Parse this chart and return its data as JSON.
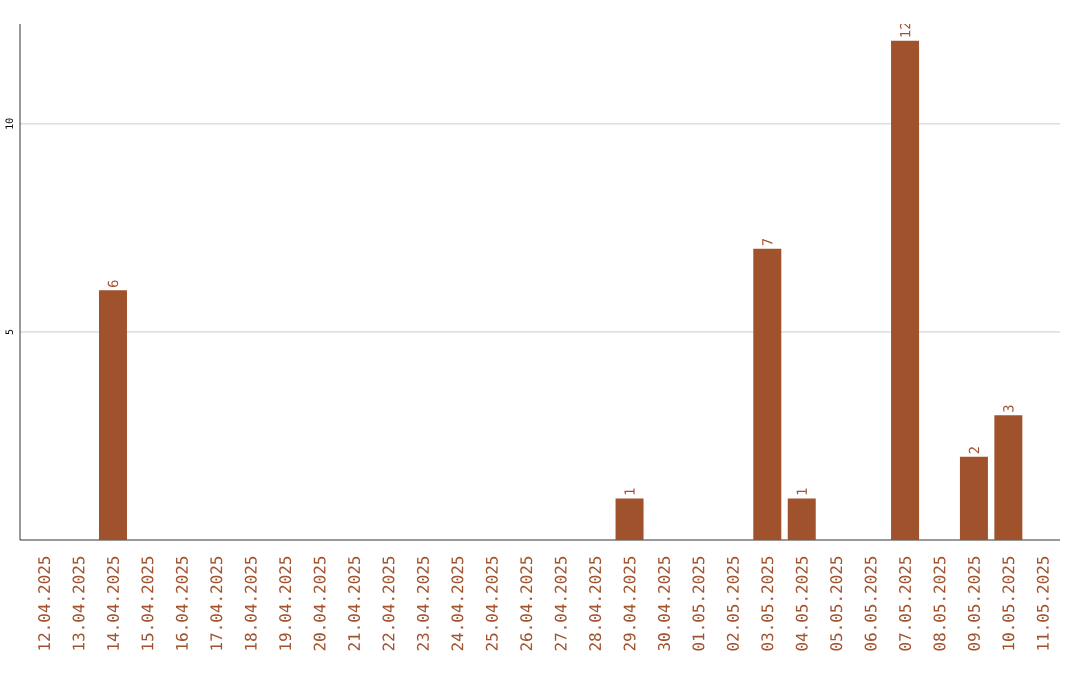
{
  "chart_data": {
    "type": "bar",
    "categories": [
      "12.04.2025",
      "13.04.2025",
      "14.04.2025",
      "15.04.2025",
      "16.04.2025",
      "17.04.2025",
      "18.04.2025",
      "19.04.2025",
      "20.04.2025",
      "21.04.2025",
      "22.04.2025",
      "23.04.2025",
      "24.04.2025",
      "25.04.2025",
      "26.04.2025",
      "27.04.2025",
      "28.04.2025",
      "29.04.2025",
      "30.04.2025",
      "01.05.2025",
      "02.05.2025",
      "03.05.2025",
      "04.05.2025",
      "05.05.2025",
      "06.05.2025",
      "07.05.2025",
      "08.05.2025",
      "09.05.2025",
      "10.05.2025",
      "11.05.2025"
    ],
    "values": [
      0,
      0,
      6,
      0,
      0,
      0,
      0,
      0,
      0,
      0,
      0,
      0,
      0,
      0,
      0,
      0,
      0,
      1,
      0,
      0,
      0,
      7,
      1,
      0,
      0,
      12,
      0,
      2,
      3,
      0
    ],
    "value_labels": [
      null,
      null,
      "6",
      null,
      null,
      null,
      null,
      null,
      null,
      null,
      null,
      null,
      null,
      null,
      null,
      null,
      null,
      "1",
      null,
      null,
      null,
      "7",
      "1",
      null,
      null,
      "12",
      null,
      "2",
      "3",
      null
    ],
    "color": "#a0522d",
    "ylim": [
      0,
      12.4
    ],
    "yticks": [
      5,
      10
    ],
    "grid": "y"
  }
}
